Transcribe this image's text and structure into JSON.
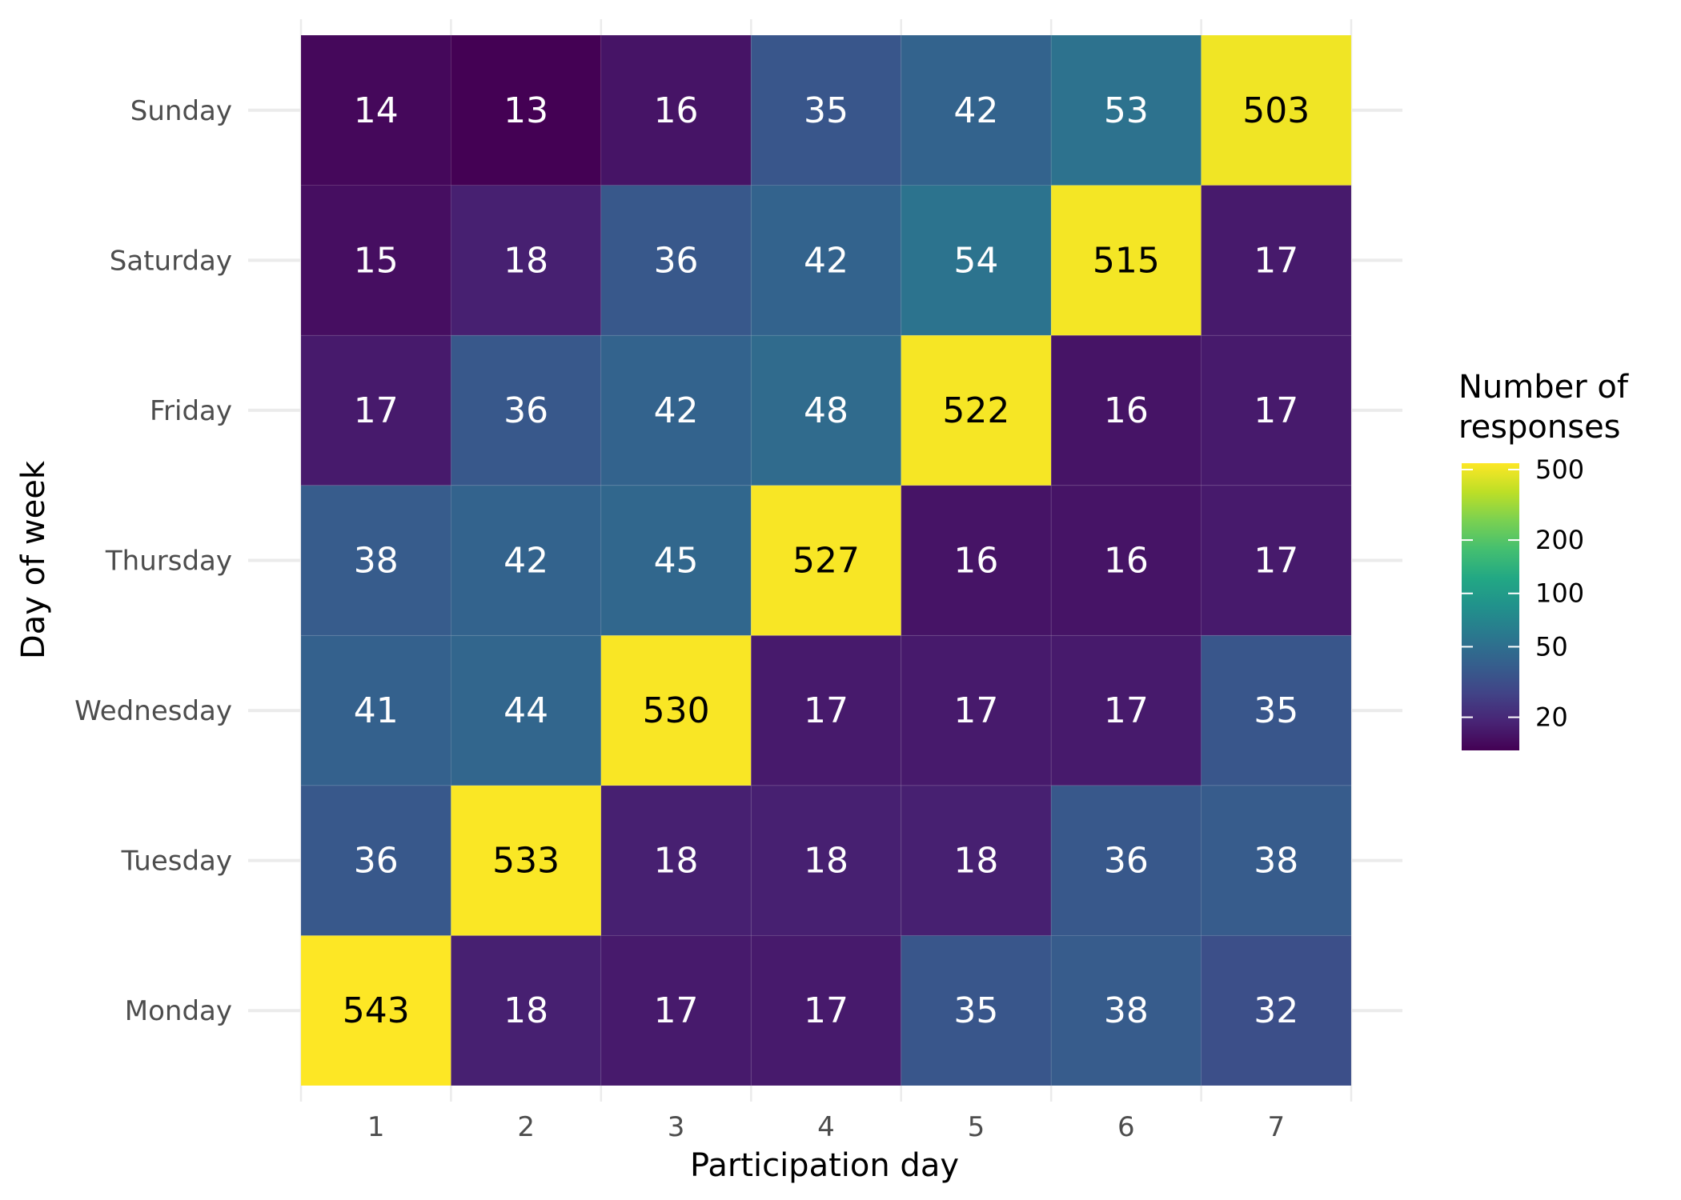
{
  "chart_data": {
    "type": "heatmap",
    "title": "",
    "xlabel": "Participation day",
    "ylabel": "Day of week",
    "x_categories": [
      "1",
      "2",
      "3",
      "4",
      "5",
      "6",
      "7"
    ],
    "y_categories": [
      "Monday",
      "Tuesday",
      "Wednesday",
      "Thursday",
      "Friday",
      "Saturday",
      "Sunday"
    ],
    "values": [
      [
        543,
        18,
        17,
        17,
        35,
        38,
        32
      ],
      [
        36,
        533,
        18,
        18,
        18,
        36,
        38
      ],
      [
        41,
        44,
        530,
        17,
        17,
        17,
        35
      ],
      [
        38,
        42,
        45,
        527,
        16,
        16,
        17
      ],
      [
        17,
        36,
        42,
        48,
        522,
        16,
        17
      ],
      [
        15,
        18,
        36,
        42,
        54,
        515,
        17
      ],
      [
        14,
        13,
        16,
        35,
        42,
        53,
        503
      ]
    ],
    "color_scale": {
      "name": "viridis",
      "scale": "log",
      "domain": [
        13,
        543
      ],
      "legend_title": "Number of responses",
      "legend_breaks": [
        "500",
        "200",
        "100",
        "50",
        "20"
      ],
      "legend_break_values": [
        500,
        200,
        100,
        50,
        20
      ]
    },
    "grid": true,
    "legend_position": "right"
  }
}
